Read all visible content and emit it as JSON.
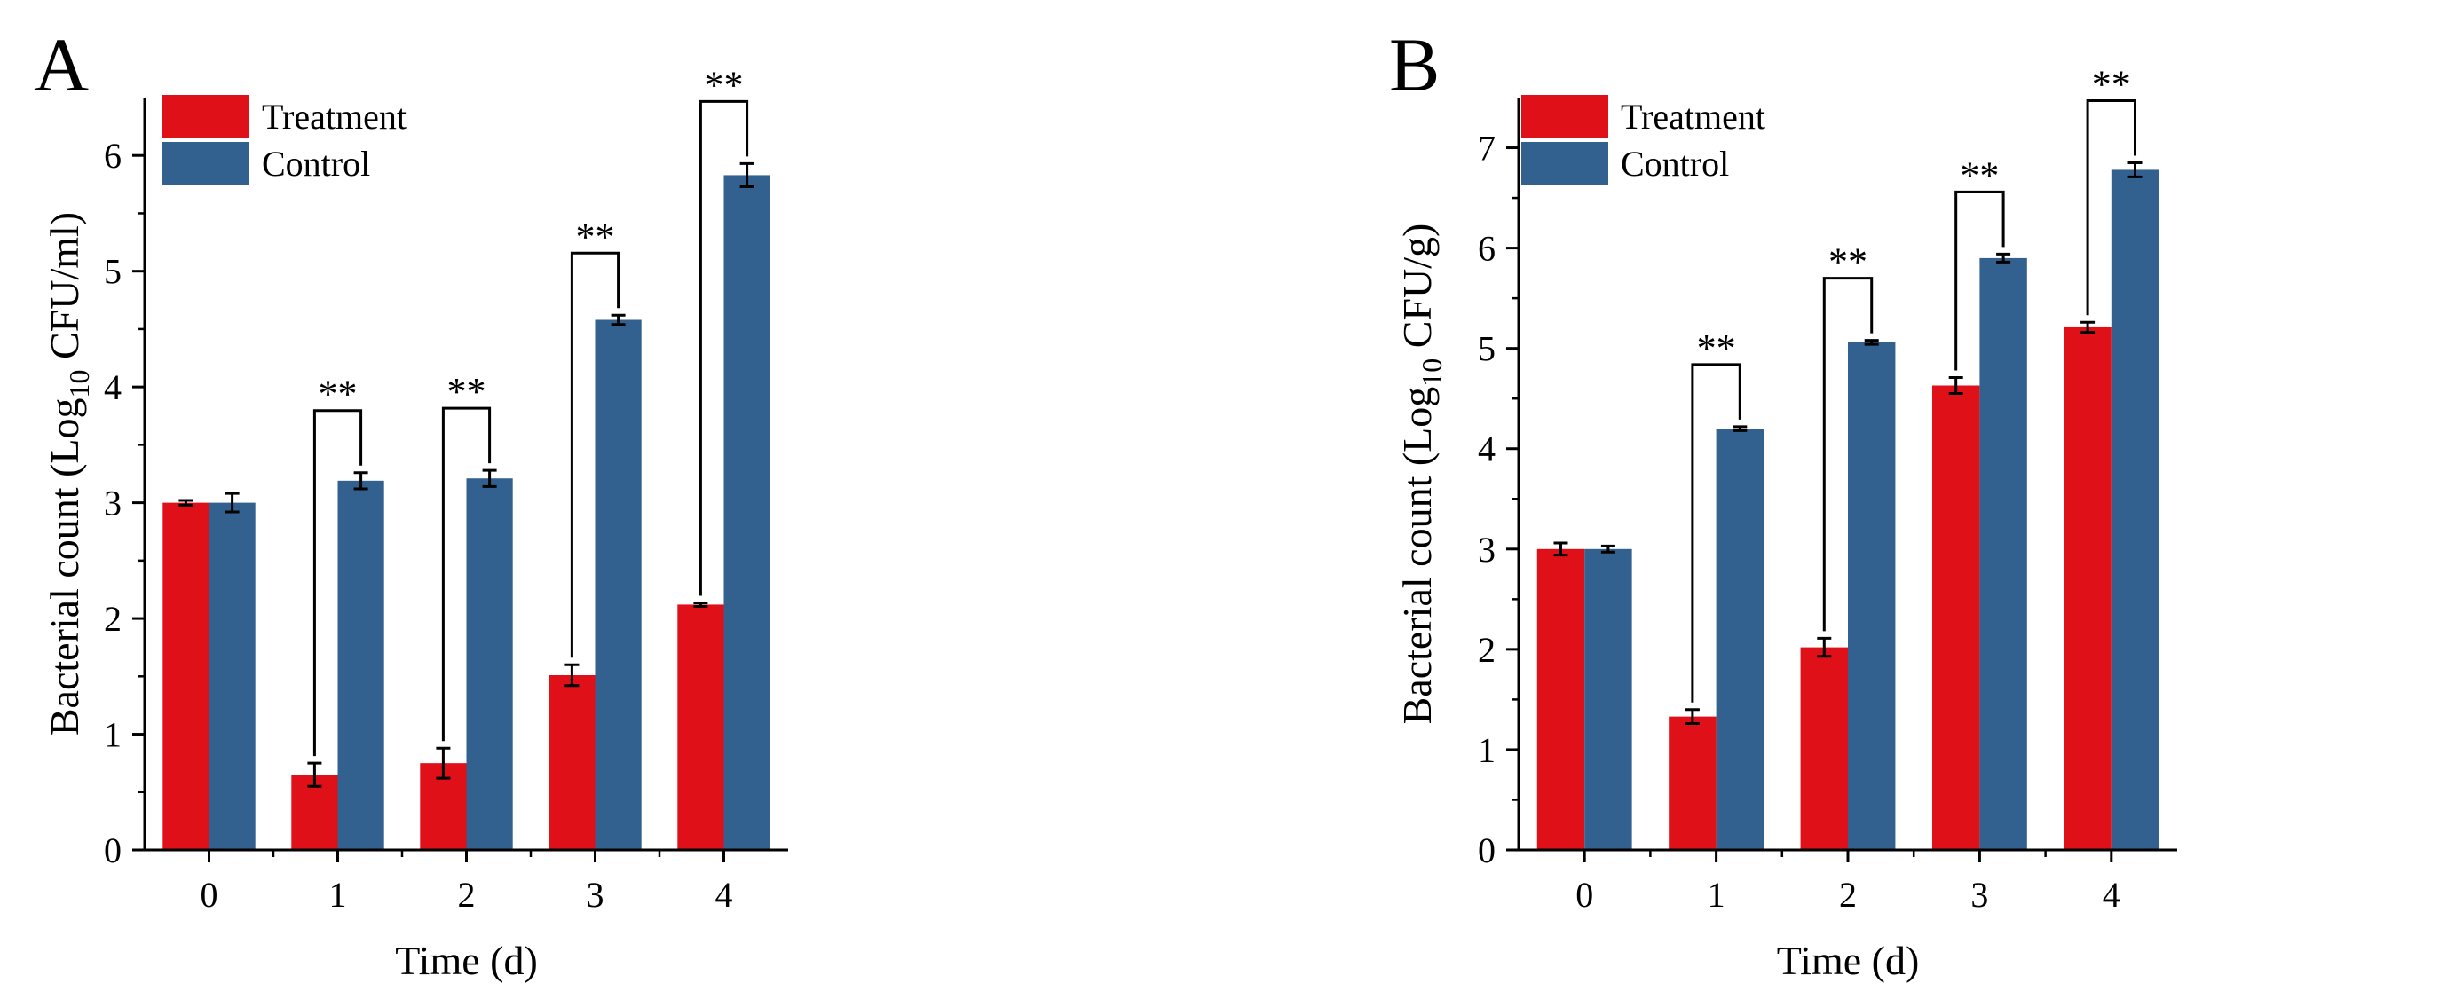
{
  "panels": [
    {
      "chart_data": {
        "type": "bar",
        "panel_label": "A",
        "categories": [
          "0",
          "1",
          "2",
          "3",
          "4"
        ],
        "series": [
          {
            "name": "Treatment",
            "color": "#e01019",
            "values": [
              3.0,
              0.65,
              0.75,
              1.51,
              2.12
            ],
            "errors": [
              0.02,
              0.1,
              0.13,
              0.09,
              0.015
            ]
          },
          {
            "name": "Control",
            "color": "#32618f",
            "values": [
              3.0,
              3.19,
              3.21,
              4.58,
              5.83
            ],
            "errors": [
              0.08,
              0.07,
              0.07,
              0.04,
              0.1
            ]
          }
        ],
        "significance": [
          "",
          "**",
          "**",
          "**",
          "**"
        ],
        "ylim": [
          0,
          6.5
        ],
        "yticks": [
          "0",
          "1",
          "2",
          "3",
          "4",
          "5",
          "6"
        ],
        "ytick_values": [
          0,
          1,
          2,
          3,
          4,
          5,
          6
        ],
        "xlabel": "Time (d)",
        "ylabel_prefix": "Bacterial count (Log",
        "ylabel_subscript": "10",
        "ylabel_suffix": " CFU/ml)",
        "legend_position": "top-left"
      }
    },
    {
      "chart_data": {
        "type": "bar",
        "panel_label": "B",
        "categories": [
          "0",
          "1",
          "2",
          "3",
          "4"
        ],
        "series": [
          {
            "name": "Treatment",
            "color": "#e01019",
            "values": [
              3.0,
              1.33,
              2.02,
              4.63,
              5.21
            ],
            "errors": [
              0.06,
              0.07,
              0.09,
              0.08,
              0.05
            ]
          },
          {
            "name": "Control",
            "color": "#32618f",
            "values": [
              3.0,
              4.2,
              5.06,
              5.9,
              6.78
            ],
            "errors": [
              0.03,
              0.02,
              0.02,
              0.04,
              0.07
            ]
          }
        ],
        "significance": [
          "",
          "**",
          "**",
          "**",
          "**"
        ],
        "ylim": [
          0,
          7.5
        ],
        "yticks": [
          "0",
          "1",
          "2",
          "3",
          "4",
          "5",
          "6",
          "7"
        ],
        "ytick_values": [
          0,
          1,
          2,
          3,
          4,
          5,
          6,
          7
        ],
        "xlabel": "Time (d)",
        "ylabel_prefix": "Bacterial count (Log",
        "ylabel_subscript": "10",
        "ylabel_suffix": " CFU/g)",
        "legend_position": "top-left"
      }
    }
  ]
}
